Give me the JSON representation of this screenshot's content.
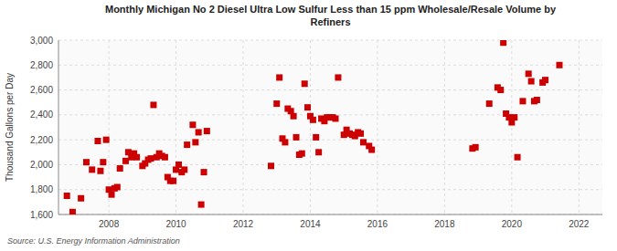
{
  "chart_data": {
    "type": "scatter",
    "title": "Monthly Michigan No 2 Diesel Ultra Low Sulfur Less than 15 ppm Wholesale/Resale Volume by\nRefiners",
    "ylabel": "Thousand Gallons per Day",
    "source": "Source: U.S. Energy Information Administration",
    "color": "#cc0000",
    "marker": "square",
    "grid": true,
    "xlim": [
      2006.5,
      2022.7
    ],
    "xticks": [
      2008,
      2010,
      2012,
      2014,
      2016,
      2018,
      2020,
      2022
    ],
    "ylim": [
      1600,
      3000
    ],
    "yticks": [
      {
        "value": 1600,
        "label": "1,600"
      },
      {
        "value": 1800,
        "label": "1,800"
      },
      {
        "value": 2000,
        "label": "2,000"
      },
      {
        "value": 2200,
        "label": "2,200"
      },
      {
        "value": 2400,
        "label": "2,400"
      },
      {
        "value": 2600,
        "label": "2,600"
      },
      {
        "value": 2800,
        "label": "2,800"
      },
      {
        "value": 3000,
        "label": "3,000"
      }
    ],
    "x": [
      2006.75,
      2006.92,
      2007.17,
      2007.33,
      2007.5,
      2007.67,
      2007.75,
      2007.83,
      2007.92,
      2008.0,
      2008.08,
      2008.17,
      2008.25,
      2008.33,
      2008.5,
      2008.58,
      2008.67,
      2008.75,
      2008.83,
      2009.0,
      2009.08,
      2009.17,
      2009.25,
      2009.33,
      2009.42,
      2009.5,
      2009.58,
      2009.67,
      2009.75,
      2009.83,
      2009.92,
      2010.0,
      2010.08,
      2010.17,
      2010.25,
      2010.33,
      2010.5,
      2010.58,
      2010.67,
      2010.75,
      2010.83,
      2010.92,
      2012.83,
      2013.0,
      2013.08,
      2013.17,
      2013.25,
      2013.33,
      2013.42,
      2013.5,
      2013.58,
      2013.67,
      2013.75,
      2013.83,
      2013.92,
      2014.0,
      2014.08,
      2014.17,
      2014.25,
      2014.33,
      2014.42,
      2014.5,
      2014.58,
      2014.67,
      2014.75,
      2014.83,
      2015.0,
      2015.08,
      2015.17,
      2015.25,
      2015.33,
      2015.42,
      2015.5,
      2015.58,
      2015.75,
      2015.83,
      2018.83,
      2018.92,
      2019.33,
      2019.58,
      2019.67,
      2019.75,
      2019.83,
      2019.92,
      2020.0,
      2020.08,
      2020.17,
      2020.33,
      2020.5,
      2020.58,
      2020.67,
      2020.75,
      2020.92,
      2021.0,
      2021.42
    ],
    "values": [
      1750,
      1620,
      1730,
      2020,
      1960,
      2190,
      1950,
      2020,
      2200,
      1800,
      1760,
      1810,
      1820,
      1970,
      2030,
      2100,
      2060,
      2090,
      2060,
      1990,
      2010,
      2040,
      2050,
      2480,
      2060,
      2090,
      2070,
      2060,
      1900,
      1870,
      1870,
      1960,
      2000,
      1940,
      1960,
      2160,
      2320,
      2180,
      2260,
      1680,
      1940,
      2270,
      1990,
      2490,
      2700,
      2210,
      2180,
      2450,
      2430,
      2390,
      2220,
      2080,
      2090,
      2650,
      2460,
      2390,
      2360,
      2220,
      2100,
      2370,
      2350,
      2380,
      2380,
      2380,
      2370,
      2700,
      2240,
      2280,
      2250,
      2240,
      2230,
      2260,
      2250,
      2180,
      2150,
      2120,
      2130,
      2140,
      2490,
      2620,
      2600,
      2980,
      2410,
      2380,
      2340,
      2380,
      2060,
      2510,
      2730,
      2670,
      2510,
      2520,
      2660,
      2680,
      2800
    ]
  }
}
